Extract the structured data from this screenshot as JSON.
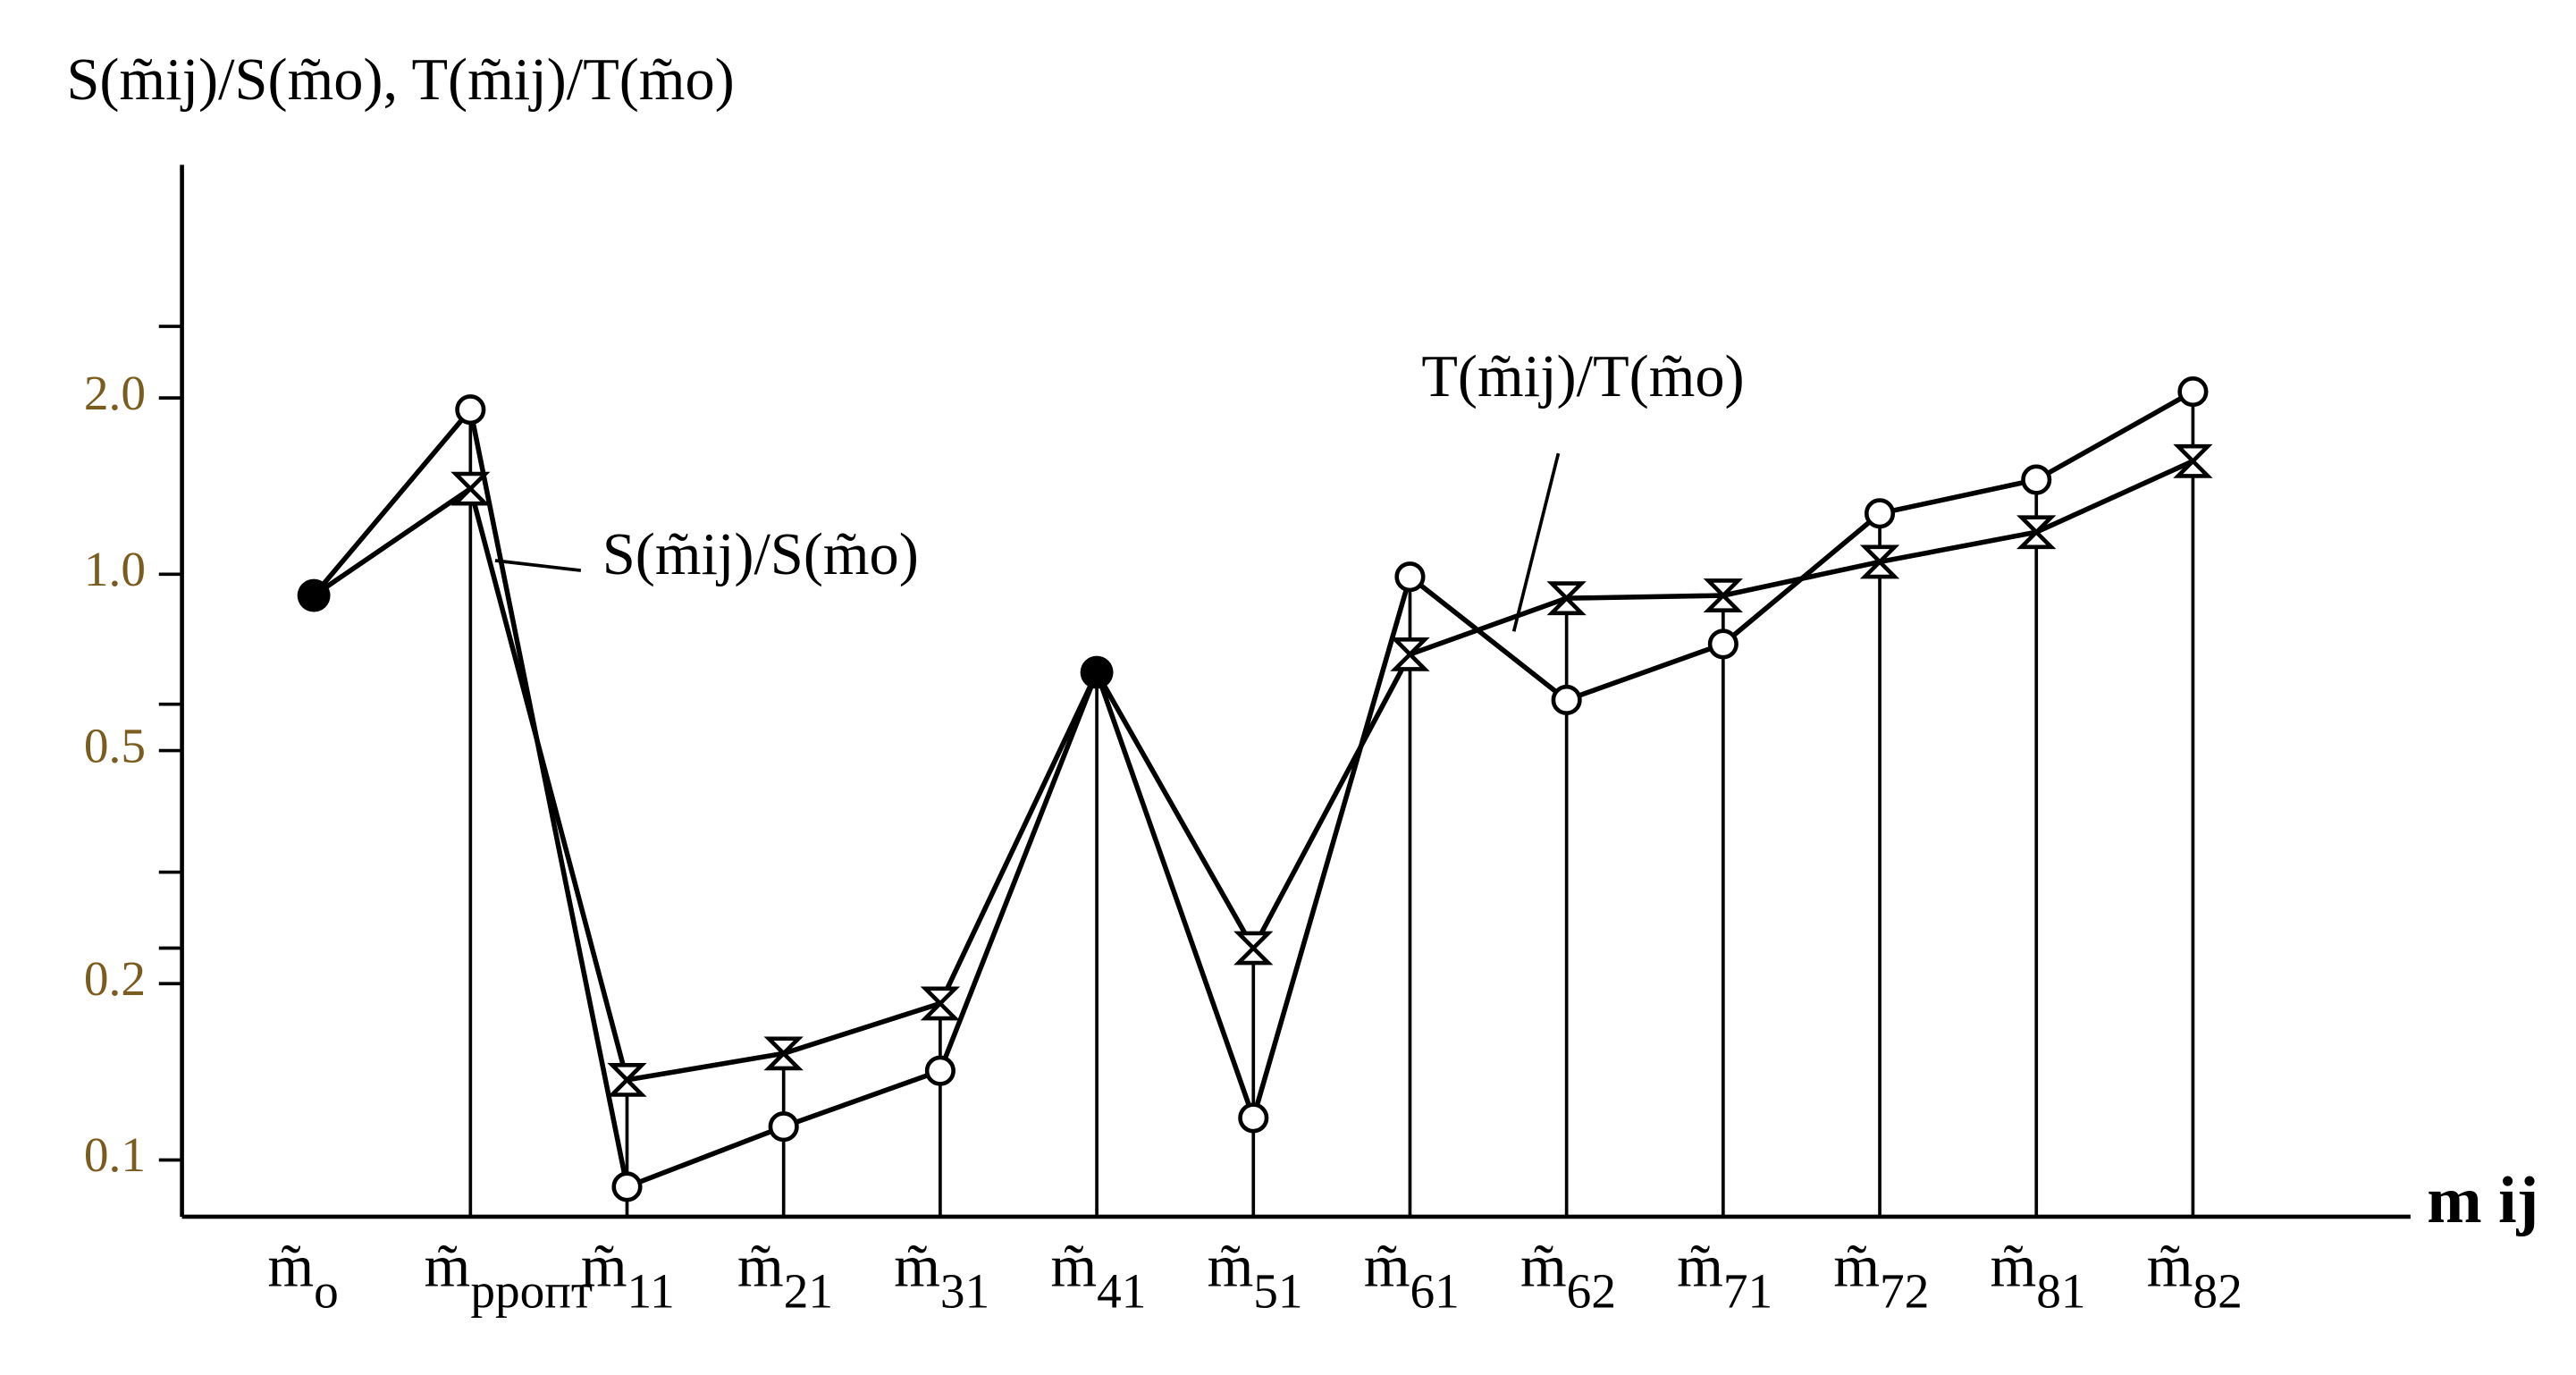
{
  "chart_data": {
    "type": "line",
    "title": "S(m̃ij)/S(m̃o), T(m̃ij)/T(m̃o)",
    "x_label": "m ij",
    "categories": [
      "m̃o",
      "m̃ppопт",
      "m̃11",
      "m̃21",
      "m̃31",
      "m̃41",
      "m̃51",
      "m̃61",
      "m̃62",
      "m̃71",
      "m̃72",
      "m̃81",
      "m̃82"
    ],
    "series": [
      {
        "name": "S(m̃ij)/S(m̃o)",
        "color": "#000000",
        "marker": "circle",
        "values": [
          0.92,
          1.91,
          0.09,
          0.114,
          0.142,
          0.68,
          0.118,
          0.99,
          0.61,
          0.76,
          1.27,
          1.45,
          2.05
        ]
      },
      {
        "name": "T(m̃ij)/T(m̃o)",
        "color": "#000000",
        "marker": "x",
        "values": [
          0.92,
          1.4,
          0.137,
          0.152,
          0.185,
          0.68,
          0.23,
          0.73,
          0.91,
          0.92,
          1.05,
          1.18,
          1.56
        ]
      }
    ],
    "log_scale": true,
    "ylim": [
      0.08,
      5
    ],
    "yticks": [
      0.1,
      0.2,
      0.5,
      {
        "value": 1,
        "label": "1.0"
      },
      {
        "value": 2,
        "label": "2.0"
      }
    ],
    "minor_yticks": [
      0.23,
      0.31,
      0.6,
      2.65
    ]
  }
}
